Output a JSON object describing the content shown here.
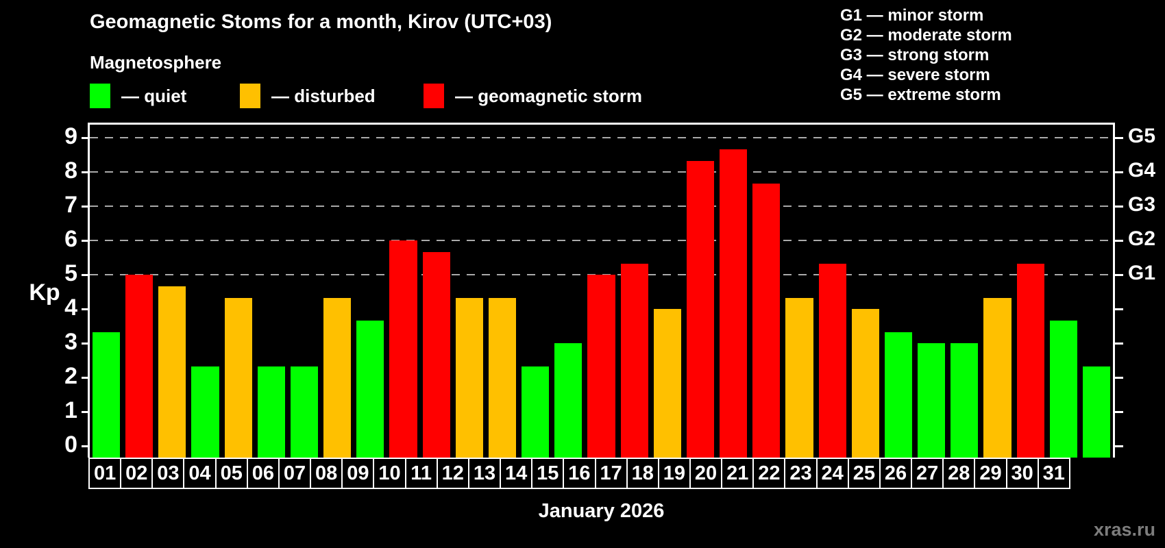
{
  "title": "Geomagnetic Stoms for a month, Kirov (UTC+03)",
  "subtitle": "Magnetosphere",
  "legend": {
    "items": [
      {
        "name": "quiet",
        "label": "— quiet",
        "color": "#00ff00"
      },
      {
        "name": "disturbed",
        "label": "— disturbed",
        "color": "#ffc000"
      },
      {
        "name": "storm",
        "label": "— geomagnetic storm",
        "color": "#ff0000"
      }
    ]
  },
  "g_scale_legend": {
    "lines": [
      "G1 — minor storm",
      "G2 — moderate storm",
      "G3 — strong storm",
      "G4 — severe storm",
      "G5 — extreme storm"
    ]
  },
  "watermark": "xras.ru",
  "chart_data": {
    "type": "bar",
    "title": "Geomagnetic Stoms for a month, Kirov (UTC+03)",
    "xlabel": "January 2026",
    "ylabel": "Kp",
    "ylim": [
      0,
      9
    ],
    "categories": [
      "01",
      "02",
      "03",
      "04",
      "05",
      "06",
      "07",
      "08",
      "09",
      "10",
      "11",
      "12",
      "13",
      "14",
      "15",
      "16",
      "17",
      "18",
      "19",
      "20",
      "21",
      "22",
      "23",
      "24",
      "25",
      "26",
      "27",
      "28",
      "29",
      "30",
      "31"
    ],
    "values": [
      3.33,
      5.0,
      4.67,
      2.33,
      4.33,
      2.33,
      2.33,
      4.33,
      3.67,
      6.0,
      5.67,
      4.33,
      4.33,
      2.33,
      3.0,
      5.0,
      5.33,
      4.0,
      8.33,
      8.67,
      7.67,
      4.33,
      5.33,
      4.0,
      3.33,
      3.0,
      3.0,
      4.33,
      5.33,
      3.67,
      2.33
    ],
    "statuses": [
      "quiet",
      "storm",
      "disturbed",
      "quiet",
      "disturbed",
      "quiet",
      "quiet",
      "disturbed",
      "quiet",
      "storm",
      "storm",
      "disturbed",
      "disturbed",
      "quiet",
      "quiet",
      "storm",
      "storm",
      "disturbed",
      "storm",
      "storm",
      "storm",
      "disturbed",
      "storm",
      "disturbed",
      "quiet",
      "quiet",
      "quiet",
      "disturbed",
      "storm",
      "quiet",
      "quiet"
    ],
    "status_colors": {
      "quiet": "#00ff00",
      "disturbed": "#ffc000",
      "storm": "#ff0000"
    },
    "left_ticks": [
      0,
      1,
      2,
      3,
      4,
      5,
      6,
      7,
      8,
      9
    ],
    "right_axis_labels": [
      {
        "kp": 5,
        "label": "G1"
      },
      {
        "kp": 6,
        "label": "G2"
      },
      {
        "kp": 7,
        "label": "G3"
      },
      {
        "kp": 8,
        "label": "G4"
      },
      {
        "kp": 9,
        "label": "G5"
      }
    ],
    "gridlines_at": [
      5,
      6,
      7,
      8,
      9
    ],
    "grid": "dashed horizontal lines at storm levels only",
    "legend_position": "top-left",
    "background": "#000000"
  }
}
